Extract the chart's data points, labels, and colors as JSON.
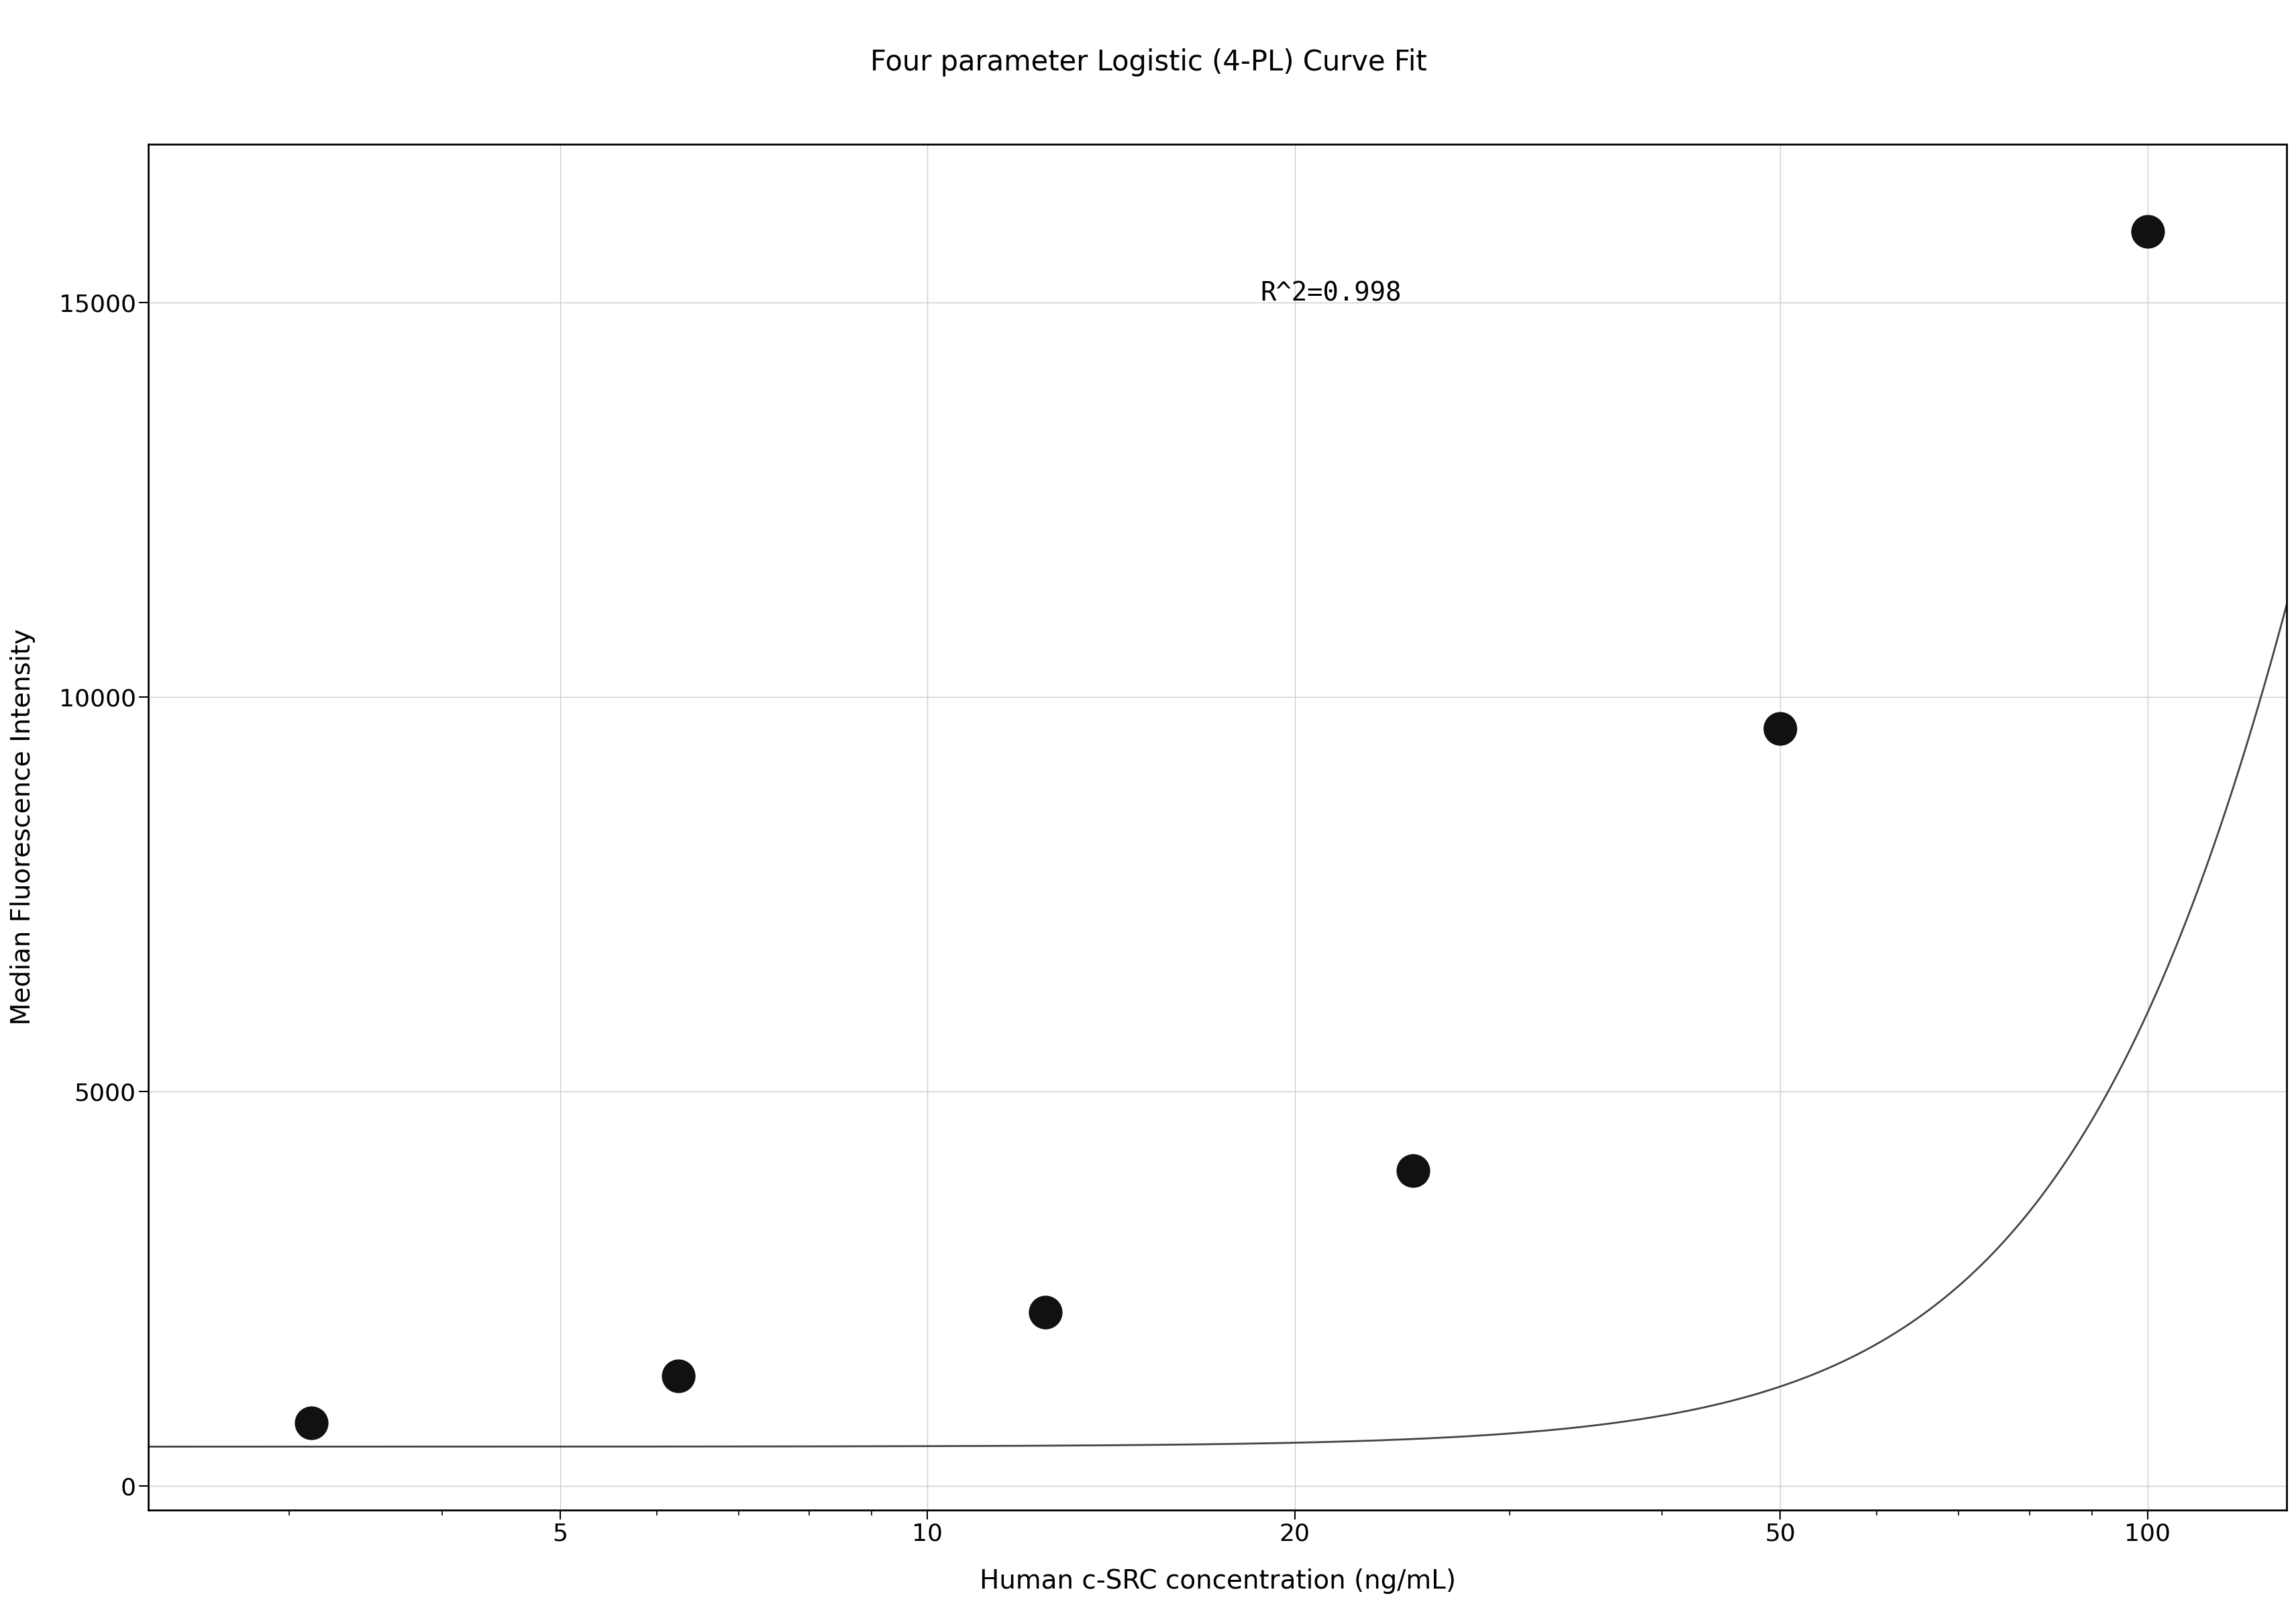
{
  "title": "Four parameter Logistic (4-PL) Curve Fit",
  "xlabel": "Human c-SRC concentration (ng/mL)",
  "ylabel": "Median Fluorescence Intensity",
  "r_squared_text": "R^2=0.998",
  "data_x": [
    3.125,
    6.25,
    12.5,
    25.0,
    50.0,
    100.0
  ],
  "data_y": [
    800,
    1400,
    2200,
    4000,
    9600,
    15900
  ],
  "xscale": "log",
  "xlim": [
    2.3,
    130
  ],
  "ylim": [
    -300,
    17000
  ],
  "yticks": [
    0,
    5000,
    10000,
    15000
  ],
  "xticks": [
    5,
    10,
    20,
    50,
    100
  ],
  "curve_color": "#444444",
  "dot_color": "#111111",
  "grid_color": "#cccccc",
  "background_color": "#ffffff",
  "title_fontsize": 30,
  "label_fontsize": 28,
  "tick_fontsize": 26,
  "annotation_fontsize": 28,
  "dot_size": 120,
  "linewidth": 2.0,
  "spine_linewidth": 2.0
}
